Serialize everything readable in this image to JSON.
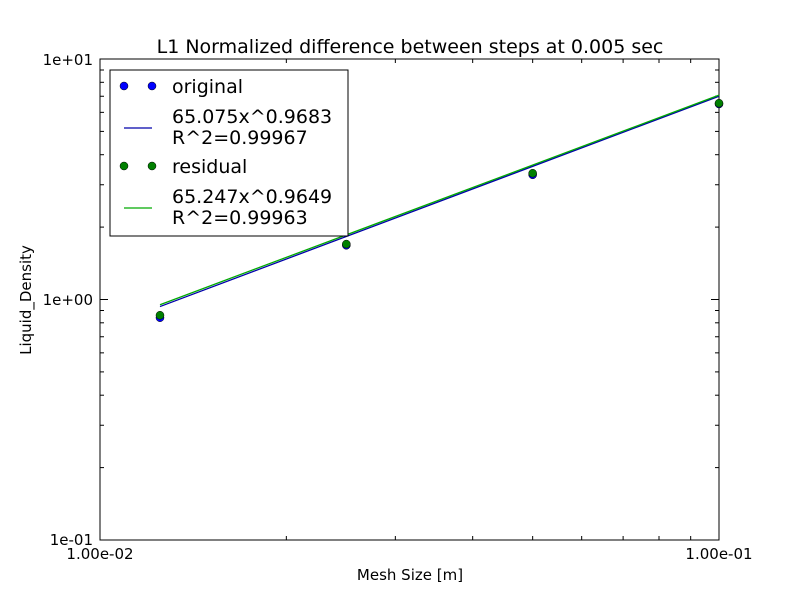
{
  "chart_data": {
    "type": "scatter",
    "title": "L1 Normalized difference between steps at 0.005 sec",
    "xlabel": "Mesh Size [m]",
    "ylabel": "Liquid_Density",
    "xscale": "log",
    "yscale": "log",
    "xlim": [
      0.01,
      0.1
    ],
    "ylim": [
      0.1,
      10
    ],
    "x_tick_labels": [
      "1.00e-02",
      "1.00e-01"
    ],
    "y_tick_labels": [
      "1e-01",
      "1e+00",
      "1e+01"
    ],
    "legend_position": "upper-left",
    "grid": false,
    "series": [
      {
        "name": "original",
        "kind": "points",
        "color": "#0000ff",
        "x": [
          0.0125,
          0.025,
          0.05,
          0.1
        ],
        "y": [
          0.84,
          1.68,
          3.3,
          6.5
        ]
      },
      {
        "name": "65.075x^0.9683\nR^2=0.99967",
        "kind": "fit",
        "color": "#0000aa",
        "coef": 65.075,
        "exponent": 0.9683
      },
      {
        "name": "residual",
        "kind": "points",
        "color": "#008000",
        "x": [
          0.0125,
          0.025,
          0.05,
          0.1
        ],
        "y": [
          0.86,
          1.7,
          3.35,
          6.55
        ]
      },
      {
        "name": "65.247x^0.9649\nR^2=0.99963",
        "kind": "fit",
        "color": "#00aa00",
        "coef": 65.247,
        "exponent": 0.9649
      }
    ]
  }
}
